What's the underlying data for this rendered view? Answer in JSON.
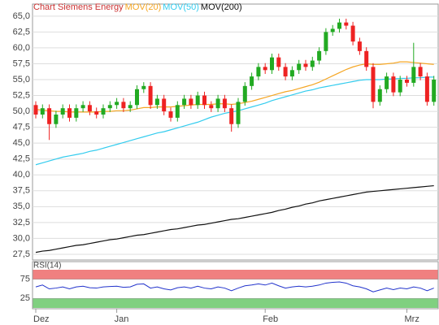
{
  "chart_data": [
    {
      "type": "candlestick",
      "title": "Chart Siemens Energy",
      "title_color": "#cc3333",
      "categories": [
        "Dez",
        null,
        null,
        null,
        null,
        null,
        null,
        null,
        null,
        null,
        null,
        null,
        "Jan",
        null,
        null,
        null,
        null,
        null,
        null,
        null,
        null,
        null,
        null,
        null,
        null,
        null,
        null,
        null,
        null,
        null,
        null,
        null,
        null,
        null,
        "Feb",
        null,
        null,
        null,
        null,
        null,
        null,
        null,
        null,
        null,
        null,
        null,
        null,
        null,
        null,
        null,
        null,
        null,
        null,
        null,
        null,
        "Mrz",
        null,
        null,
        null,
        null
      ],
      "open": [
        51.0,
        49.5,
        50.5,
        48.0,
        49.5,
        50.5,
        49.0,
        50.5,
        51.0,
        50.0,
        49.5,
        50.5,
        51.0,
        51.5,
        50.5,
        51.0,
        53.5,
        54.0,
        51.0,
        52.0,
        50.0,
        49.0,
        51.0,
        52.0,
        51.0,
        52.5,
        51.0,
        50.5,
        52.0,
        50.5,
        48.0,
        51.5,
        54.0,
        55.5,
        57.0,
        56.5,
        58.5,
        57.0,
        55.5,
        56.5,
        57.5,
        57.0,
        58.0,
        59.5,
        62.5,
        63.0,
        64.0,
        63.5,
        61.0,
        59.5,
        57.0,
        51.5,
        53.5,
        55.5,
        53.0,
        55.0,
        54.5,
        57.0,
        55.5,
        51.5
      ],
      "high": [
        51.6,
        51.1,
        51.1,
        50.1,
        51.1,
        51.1,
        51.1,
        51.6,
        51.6,
        50.6,
        51.1,
        51.6,
        52.1,
        52.1,
        51.6,
        54.1,
        54.6,
        54.6,
        52.6,
        52.6,
        50.6,
        51.6,
        52.6,
        52.6,
        53.1,
        53.1,
        51.6,
        52.6,
        52.6,
        51.1,
        52.1,
        54.6,
        56.1,
        57.6,
        57.6,
        59.1,
        59.1,
        57.6,
        57.1,
        58.1,
        58.1,
        58.6,
        60.1,
        63.1,
        63.6,
        64.6,
        64.6,
        64.1,
        61.6,
        60.1,
        57.6,
        54.1,
        56.1,
        56.1,
        55.6,
        55.6,
        60.8,
        57.6,
        56.1,
        55.6
      ],
      "low": [
        48.9,
        48.9,
        45.5,
        47.4,
        48.9,
        48.4,
        48.4,
        49.9,
        49.4,
        48.9,
        48.9,
        49.9,
        50.4,
        49.9,
        49.9,
        50.4,
        52.9,
        50.4,
        50.4,
        49.4,
        48.4,
        48.4,
        50.4,
        50.4,
        50.4,
        50.4,
        49.9,
        49.9,
        49.9,
        46.8,
        47.4,
        50.9,
        53.4,
        54.9,
        55.9,
        55.9,
        56.4,
        54.9,
        54.9,
        55.9,
        56.4,
        56.4,
        57.4,
        58.9,
        61.9,
        62.4,
        62.9,
        60.4,
        58.9,
        56.4,
        50.5,
        50.9,
        52.9,
        52.4,
        52.4,
        53.9,
        53.9,
        54.9,
        50.9,
        50.9
      ],
      "close": [
        49.5,
        50.5,
        48.0,
        49.5,
        50.5,
        49.0,
        50.5,
        51.0,
        50.0,
        49.5,
        50.5,
        51.0,
        51.5,
        50.5,
        51.0,
        53.5,
        54.0,
        51.0,
        52.0,
        50.0,
        49.0,
        51.0,
        52.0,
        51.0,
        52.5,
        51.0,
        50.5,
        52.0,
        50.5,
        48.0,
        51.5,
        54.0,
        55.5,
        57.0,
        56.5,
        58.5,
        57.0,
        55.5,
        56.5,
        57.5,
        57.0,
        58.0,
        59.5,
        62.5,
        63.0,
        64.0,
        63.5,
        61.0,
        59.5,
        57.0,
        51.5,
        53.5,
        55.5,
        53.0,
        55.0,
        54.5,
        57.0,
        55.5,
        51.5,
        55.0
      ],
      "up_color": "#22aa22",
      "down_color": "#ee2222",
      "series": [
        {
          "name": "MOV(20)",
          "color": "#f5a623",
          "values": [
            50.3,
            50.2,
            50.1,
            50.0,
            50.0,
            49.9,
            49.9,
            49.9,
            49.9,
            49.9,
            50.0,
            50.0,
            50.1,
            50.1,
            50.2,
            50.4,
            50.6,
            50.6,
            50.7,
            50.7,
            50.7,
            50.8,
            50.9,
            51.0,
            51.1,
            51.1,
            51.1,
            51.2,
            51.2,
            51.1,
            51.2,
            51.4,
            51.6,
            51.9,
            52.2,
            52.5,
            52.8,
            53.1,
            53.3,
            53.6,
            53.9,
            54.2,
            54.6,
            55.1,
            55.6,
            56.1,
            56.6,
            57.0,
            57.3,
            57.5,
            57.4,
            57.4,
            57.5,
            57.6,
            57.8,
            57.8,
            57.7,
            57.6,
            57.5,
            57.4
          ]
        },
        {
          "name": "MOV(50)",
          "color": "#33ccee",
          "values": [
            41.6,
            41.9,
            42.2,
            42.5,
            42.8,
            43.0,
            43.2,
            43.4,
            43.7,
            43.9,
            44.2,
            44.5,
            44.8,
            45.1,
            45.4,
            45.7,
            46.0,
            46.3,
            46.6,
            46.8,
            47.1,
            47.4,
            47.7,
            48.0,
            48.3,
            48.7,
            49.1,
            49.4,
            49.7,
            49.9,
            50.1,
            50.4,
            50.7,
            51.0,
            51.3,
            51.7,
            52.0,
            52.3,
            52.6,
            52.9,
            53.2,
            53.4,
            53.7,
            53.9,
            54.1,
            54.3,
            54.5,
            54.7,
            54.9,
            55.0,
            55.0,
            55.0,
            55.1,
            55.1,
            55.2,
            55.2,
            55.3,
            55.3,
            55.4,
            55.4
          ]
        },
        {
          "name": "MOV(200)",
          "color": "#111111",
          "values": [
            27.8,
            28.0,
            28.1,
            28.3,
            28.5,
            28.7,
            28.9,
            29.0,
            29.2,
            29.4,
            29.6,
            29.8,
            29.9,
            30.1,
            30.3,
            30.5,
            30.6,
            30.8,
            31.0,
            31.2,
            31.4,
            31.5,
            31.7,
            31.9,
            32.1,
            32.2,
            32.4,
            32.6,
            32.8,
            33.0,
            33.1,
            33.3,
            33.5,
            33.7,
            33.9,
            34.1,
            34.4,
            34.6,
            34.9,
            35.1,
            35.4,
            35.6,
            35.9,
            36.1,
            36.3,
            36.5,
            36.7,
            36.9,
            37.1,
            37.3,
            37.4,
            37.5,
            37.6,
            37.7,
            37.8,
            37.9,
            38.0,
            38.1,
            38.2,
            38.3
          ]
        }
      ],
      "ylim": [
        26.6,
        66.9
      ],
      "yticks": [
        {
          "value": 27.5,
          "label": "27,5"
        },
        {
          "value": 30,
          "label": "30,0"
        },
        {
          "value": 32.5,
          "label": "32,5"
        },
        {
          "value": 35,
          "label": "35,0"
        },
        {
          "value": 37.5,
          "label": "37,5"
        },
        {
          "value": 40,
          "label": "40,0"
        },
        {
          "value": 42.5,
          "label": "42,5"
        },
        {
          "value": 45,
          "label": "45,0"
        },
        {
          "value": 47.5,
          "label": "47,5"
        },
        {
          "value": 50,
          "label": "50,0"
        },
        {
          "value": 52.5,
          "label": "52,5"
        },
        {
          "value": 55,
          "label": "55,0"
        },
        {
          "value": 57.5,
          "label": "57,5"
        },
        {
          "value": 60,
          "label": "60,0"
        },
        {
          "value": 62.5,
          "label": "62,5"
        },
        {
          "value": 65,
          "label": "65,0"
        }
      ],
      "grid": true
    },
    {
      "type": "line",
      "title": "RSI(14)",
      "series": [
        {
          "name": "RSI(14)",
          "color": "#2233cc",
          "values": [
            55,
            60,
            50,
            52,
            55,
            50,
            55,
            57,
            53,
            52,
            55,
            56,
            57,
            54,
            55,
            62,
            63,
            52,
            55,
            50,
            47,
            53,
            55,
            52,
            57,
            52,
            50,
            55,
            52,
            45,
            52,
            58,
            60,
            63,
            60,
            65,
            58,
            52,
            55,
            57,
            55,
            57,
            60,
            65,
            67,
            68,
            65,
            58,
            55,
            50,
            42,
            47,
            52,
            48,
            52,
            50,
            55,
            52,
            45,
            52
          ]
        }
      ],
      "ylim": [
        0,
        100
      ],
      "yticks": [
        25,
        75
      ],
      "upper_band_color": "#f08080",
      "lower_band_color": "#80d080"
    }
  ]
}
